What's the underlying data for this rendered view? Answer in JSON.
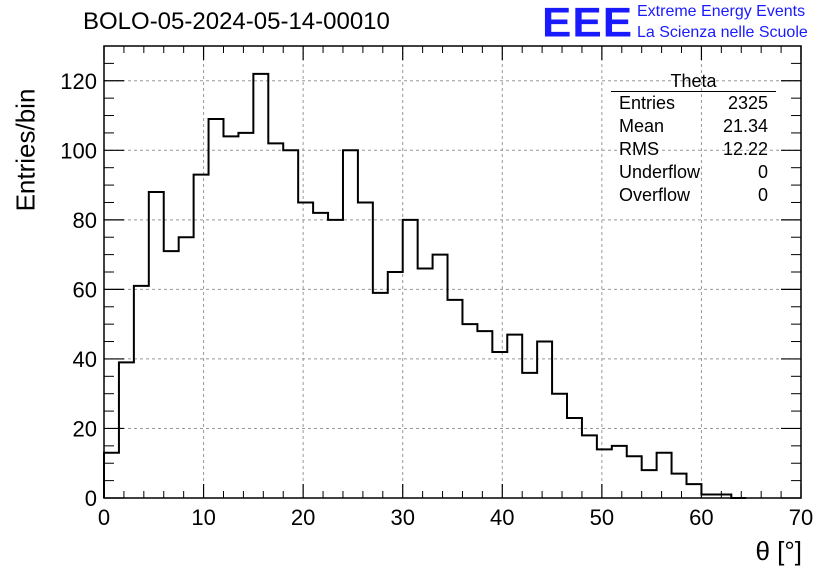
{
  "title": "BOLO-05-2024-05-14-00010",
  "logo": {
    "text": "EEE",
    "line1": "Extreme Energy Events",
    "line2": "La Scienza nelle Scuole",
    "color": "#1a1aff"
  },
  "stats": {
    "title": "Theta",
    "rows": [
      {
        "label": "Entries",
        "value": "2325"
      },
      {
        "label": "Mean",
        "value": "21.34"
      },
      {
        "label": "RMS",
        "value": "12.22"
      },
      {
        "label": "Underflow",
        "value": "0"
      },
      {
        "label": "Overflow",
        "value": "0"
      }
    ]
  },
  "chart_data": {
    "type": "histogram",
    "xlabel": "θ [°]",
    "ylabel": "Entries/bin",
    "xlim": [
      0,
      70
    ],
    "ylim": [
      0,
      130
    ],
    "xticks": [
      0,
      10,
      20,
      30,
      40,
      50,
      60,
      70
    ],
    "yticks": [
      0,
      20,
      40,
      60,
      80,
      100,
      120
    ],
    "grid": true,
    "bin_width": 1.5,
    "bin_start": 0,
    "values": [
      13,
      39,
      61,
      88,
      71,
      75,
      93,
      109,
      104,
      105,
      122,
      102,
      100,
      85,
      82,
      80,
      100,
      85,
      59,
      65,
      80,
      66,
      70,
      57,
      50,
      48,
      42,
      47,
      36,
      45,
      30,
      23,
      18,
      14,
      15,
      12,
      8,
      13,
      7,
      4,
      1,
      1,
      0
    ]
  }
}
